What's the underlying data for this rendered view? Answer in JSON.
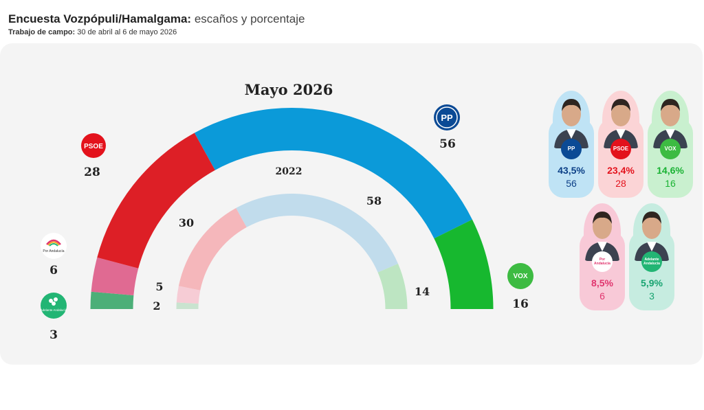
{
  "header": {
    "title_bold": "Encuesta Vozpópuli/Hamalgama:",
    "title_light": "escaños y porcentaje",
    "fieldwork_label": "Trabajo de campo:",
    "fieldwork_dates": "30 de abril al 6 de mayo 2026"
  },
  "chart_data": {
    "type": "hemicycle",
    "total_seats": 109,
    "outer": {
      "title": "Mayo 2026",
      "series": [
        {
          "party": "Adelante Andalucía",
          "seats": 3,
          "color": "#4caf78"
        },
        {
          "party": "Por Andalucía",
          "seats": 6,
          "color": "#e06a92"
        },
        {
          "party": "PSOE",
          "seats": 28,
          "color": "#dd1f26"
        },
        {
          "party": "PP",
          "seats": 56,
          "color": "#0b9ad9"
        },
        {
          "party": "VOX",
          "seats": 16,
          "color": "#17b82f"
        }
      ]
    },
    "inner": {
      "title": "2022",
      "series": [
        {
          "party": "Adelante Andalucía",
          "seats": 2,
          "color": "#c9e3cf"
        },
        {
          "party": "Por Andalucía",
          "seats": 5,
          "color": "#f6ccd5"
        },
        {
          "party": "PSOE",
          "seats": 30,
          "color": "#f5b7bb"
        },
        {
          "party": "PP",
          "seats": 58,
          "color": "#c1dcec"
        },
        {
          "party": "VOX",
          "seats": 14,
          "color": "#bde5c2"
        }
      ]
    },
    "labels": {
      "psoe_logo": "PSOE",
      "pp_logo": "PP",
      "vox_logo": "VOX",
      "por_andalucia_logo": "Por Andalucía",
      "adelante_logo": "Adelante Andalucía"
    }
  },
  "cards": [
    {
      "party": "PP",
      "pct": "43,5%",
      "seats": "56",
      "bg": "#bfe3f5",
      "pct_color": "#0b3f86",
      "seat_color": "#0b3f86",
      "badge": "PP",
      "badge_color": "#0b4a95"
    },
    {
      "party": "PSOE",
      "pct": "23,4%",
      "seats": "28",
      "bg": "#fbd4d6",
      "pct_color": "#e3121c",
      "seat_color": "#e3121c",
      "badge": "PSOE",
      "badge_color": "#e3121c"
    },
    {
      "party": "VOX",
      "pct": "14,6%",
      "seats": "16",
      "bg": "#c9f0cf",
      "pct_color": "#19b233",
      "seat_color": "#19b233",
      "badge": "VOX",
      "badge_color": "#3dbb42"
    },
    {
      "party": "Por Andalucía",
      "pct": "8,5%",
      "seats": "6",
      "bg": "#f8c9d7",
      "pct_color": "#e0356e",
      "seat_color": "#e0356e",
      "badge": "Por Andalucía",
      "badge_color": "#ffffff"
    },
    {
      "party": "Adelante Andalucía",
      "pct": "5,9%",
      "seats": "3",
      "bg": "#c6ece0",
      "pct_color": "#17a370",
      "seat_color": "#17a370",
      "badge": "Adelante Andalucía",
      "badge_color": "#22b574"
    }
  ]
}
